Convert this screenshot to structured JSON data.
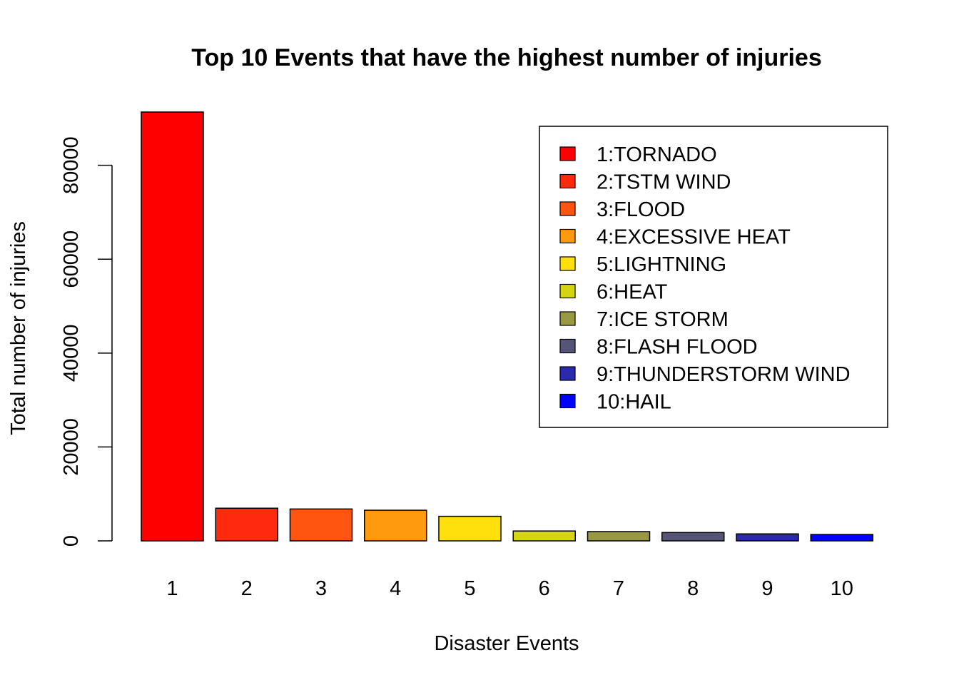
{
  "chart_data": {
    "type": "bar",
    "title": "Top 10 Events that have the highest number of injuries",
    "xlabel": "Disaster Events",
    "ylabel": "Total number of injuries",
    "categories": [
      "1",
      "2",
      "3",
      "4",
      "5",
      "6",
      "7",
      "8",
      "9",
      "10"
    ],
    "values": [
      91346,
      6957,
      6789,
      6525,
      5230,
      2100,
      1975,
      1777,
      1488,
      1361
    ],
    "ylim": [
      0,
      91346
    ],
    "yticks": [
      0,
      20000,
      40000,
      60000,
      80000
    ],
    "ytick_labels": [
      "0",
      "20000",
      "40000",
      "60000",
      "80000"
    ],
    "grid": false,
    "legend": {
      "position": "top-right",
      "entries": [
        "1:TORNADO",
        "2:TSTM WIND",
        "3:FLOOD",
        "4:EXCESSIVE HEAT",
        "5:LIGHTNING",
        "6:HEAT",
        "7:ICE STORM",
        "8:FLASH FLOOD",
        "9:THUNDERSTORM WIND",
        "10:HAIL"
      ]
    },
    "colors": [
      "#ff0000",
      "#ff2a0d",
      "#ff5510",
      "#ff9a0f",
      "#ffdf0c",
      "#d4d411",
      "#999944",
      "#555577",
      "#2a2aaa",
      "#0000ff"
    ]
  }
}
